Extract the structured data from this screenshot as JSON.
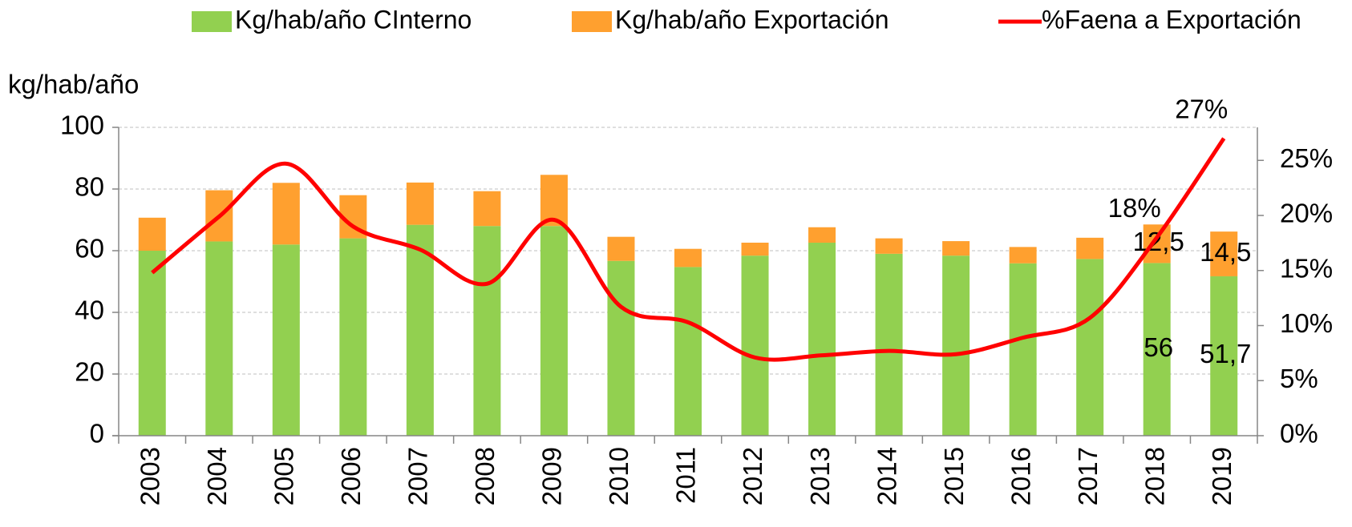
{
  "chart_data": {
    "type": "bar",
    "y_label": "kg/hab/año",
    "categories": [
      "2003",
      "2004",
      "2005",
      "2006",
      "2007",
      "2008",
      "2009",
      "2010",
      "2011",
      "2012",
      "2013",
      "2014",
      "2015",
      "2016",
      "2017",
      "2018",
      "2019"
    ],
    "series": [
      {
        "name": "Kg/hab/año CInterno",
        "color": "#92d050",
        "type": "bar",
        "values": [
          60,
          63,
          62,
          64,
          68.4,
          68,
          68,
          56.7,
          54.7,
          58.4,
          62.6,
          59,
          58.4,
          55.9,
          57.3,
          56,
          51.7
        ],
        "value_labels": [
          null,
          null,
          null,
          null,
          null,
          null,
          null,
          null,
          null,
          null,
          null,
          null,
          null,
          null,
          null,
          "56",
          "51,7"
        ]
      },
      {
        "name": "Kg/hab/año Exportación",
        "color": "#ffa02f",
        "type": "bar",
        "values": [
          10.7,
          16.6,
          20,
          14,
          13.7,
          11.3,
          16.6,
          7.8,
          5.9,
          4.2,
          5,
          5,
          4.7,
          5.3,
          6.9,
          12.5,
          14.5
        ],
        "value_labels": [
          null,
          null,
          null,
          null,
          null,
          null,
          null,
          null,
          null,
          null,
          null,
          null,
          null,
          null,
          null,
          "12,5",
          "14,5"
        ]
      },
      {
        "name": "%Faena a Exportación",
        "color": "#ff0000",
        "type": "line",
        "axis": "y2",
        "values": [
          14.8,
          19.9,
          24.7,
          19,
          16.9,
          13.8,
          19.6,
          11.7,
          10.3,
          7.1,
          7.3,
          7.7,
          7.4,
          8.9,
          10.7,
          18,
          27
        ],
        "value_labels": [
          null,
          null,
          null,
          null,
          null,
          null,
          null,
          null,
          null,
          null,
          null,
          null,
          null,
          null,
          null,
          "18%",
          "27%"
        ]
      }
    ],
    "ylim": [
      0,
      100
    ],
    "yticks": [
      0,
      20,
      40,
      60,
      80,
      100
    ],
    "y2lim": [
      0,
      28
    ],
    "y2ticks": [
      {
        "value": 0,
        "label": "0%"
      },
      {
        "value": 5,
        "label": "5%"
      },
      {
        "value": 10,
        "label": "10%"
      },
      {
        "value": 15,
        "label": "15%"
      },
      {
        "value": 20,
        "label": "20%"
      },
      {
        "value": 25,
        "label": "25%"
      }
    ],
    "grid": true,
    "stacked": true,
    "legend": "top"
  }
}
